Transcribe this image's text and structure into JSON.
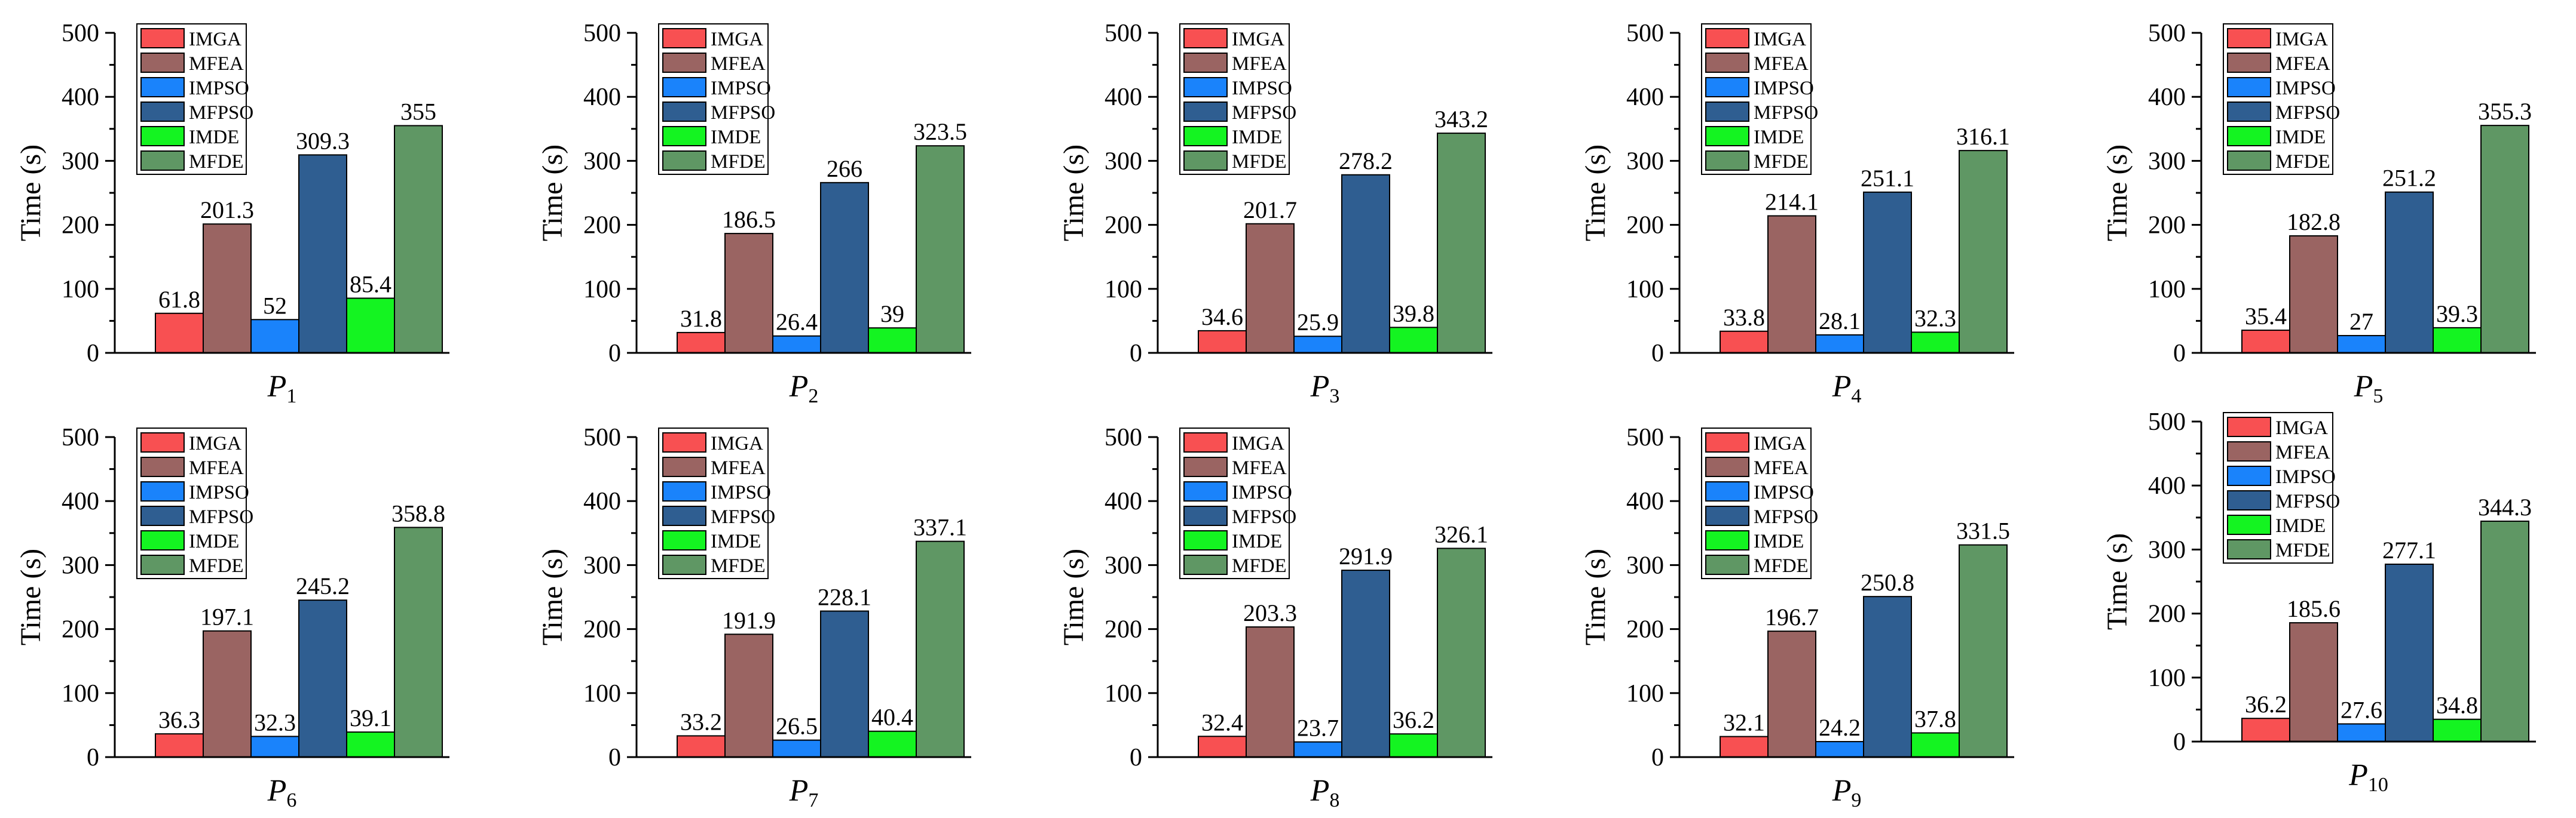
{
  "colors": {
    "IMGA": "#f85052",
    "MFEA": "#9a6462",
    "IMPSO": "#1a83fb",
    "MFPSO": "#2f5e91",
    "IMDE": "#14f421",
    "MFDE": "#5f9764"
  },
  "chart_data": [
    {
      "type": "bar",
      "xlabel": "P",
      "xlabel_sub": "1",
      "ylabel": "Time (s)",
      "ylim": [
        0,
        500
      ],
      "yticks": [
        "0",
        "100",
        "200",
        "300",
        "400",
        "500"
      ],
      "legend": "top-left",
      "series": [
        {
          "name": "IMGA",
          "value": 61.8,
          "label": "61.8"
        },
        {
          "name": "MFEA",
          "value": 201.3,
          "label": "201.3"
        },
        {
          "name": "IMPSO",
          "value": 52,
          "label": "52"
        },
        {
          "name": "MFPSO",
          "value": 309.3,
          "label": "309.3"
        },
        {
          "name": "IMDE",
          "value": 85.4,
          "label": "85.4"
        },
        {
          "name": "MFDE",
          "value": 355,
          "label": "355"
        }
      ]
    },
    {
      "type": "bar",
      "xlabel": "P",
      "xlabel_sub": "2",
      "ylabel": "Time (s)",
      "ylim": [
        0,
        500
      ],
      "yticks": [
        "0",
        "100",
        "200",
        "300",
        "400",
        "500"
      ],
      "legend": "top-left",
      "series": [
        {
          "name": "IMGA",
          "value": 31.8,
          "label": "31.8"
        },
        {
          "name": "MFEA",
          "value": 186.5,
          "label": "186.5"
        },
        {
          "name": "IMPSO",
          "value": 26.4,
          "label": "26.4"
        },
        {
          "name": "MFPSO",
          "value": 266,
          "label": "266"
        },
        {
          "name": "IMDE",
          "value": 39,
          "label": "39"
        },
        {
          "name": "MFDE",
          "value": 323.5,
          "label": "323.5"
        }
      ]
    },
    {
      "type": "bar",
      "xlabel": "P",
      "xlabel_sub": "3",
      "ylabel": "Time (s)",
      "ylim": [
        0,
        500
      ],
      "yticks": [
        "0",
        "100",
        "200",
        "300",
        "400",
        "500"
      ],
      "legend": "top-left",
      "series": [
        {
          "name": "IMGA",
          "value": 34.6,
          "label": "34.6"
        },
        {
          "name": "MFEA",
          "value": 201.7,
          "label": "201.7"
        },
        {
          "name": "IMPSO",
          "value": 25.9,
          "label": "25.9"
        },
        {
          "name": "MFPSO",
          "value": 278.2,
          "label": "278.2"
        },
        {
          "name": "IMDE",
          "value": 39.8,
          "label": "39.8"
        },
        {
          "name": "MFDE",
          "value": 343.2,
          "label": "343.2"
        }
      ]
    },
    {
      "type": "bar",
      "xlabel": "P",
      "xlabel_sub": "4",
      "ylabel": "Time (s)",
      "ylim": [
        0,
        500
      ],
      "yticks": [
        "0",
        "100",
        "200",
        "300",
        "400",
        "500"
      ],
      "legend": "top-left",
      "series": [
        {
          "name": "IMGA",
          "value": 33.8,
          "label": "33.8"
        },
        {
          "name": "MFEA",
          "value": 214.1,
          "label": "214.1"
        },
        {
          "name": "IMPSO",
          "value": 28.1,
          "label": "28.1"
        },
        {
          "name": "MFPSO",
          "value": 251.1,
          "label": "251.1"
        },
        {
          "name": "IMDE",
          "value": 32.3,
          "label": "32.3"
        },
        {
          "name": "MFDE",
          "value": 316.1,
          "label": "316.1"
        }
      ]
    },
    {
      "type": "bar",
      "xlabel": "P",
      "xlabel_sub": "5",
      "ylabel": "Time (s)",
      "ylim": [
        0,
        500
      ],
      "yticks": [
        "0",
        "100",
        "200",
        "300",
        "400",
        "500"
      ],
      "legend": "top-left",
      "series": [
        {
          "name": "IMGA",
          "value": 35.4,
          "label": "35.4"
        },
        {
          "name": "MFEA",
          "value": 182.8,
          "label": "182.8"
        },
        {
          "name": "IMPSO",
          "value": 27,
          "label": "27"
        },
        {
          "name": "MFPSO",
          "value": 251.2,
          "label": "251.2"
        },
        {
          "name": "IMDE",
          "value": 39.3,
          "label": "39.3"
        },
        {
          "name": "MFDE",
          "value": 355.3,
          "label": "355.3"
        }
      ]
    },
    {
      "type": "bar",
      "xlabel": "P",
      "xlabel_sub": "6",
      "ylabel": "Time (s)",
      "ylim": [
        0,
        500
      ],
      "yticks": [
        "0",
        "100",
        "200",
        "300",
        "400",
        "500"
      ],
      "legend": "top-left",
      "series": [
        {
          "name": "IMGA",
          "value": 36.3,
          "label": "36.3"
        },
        {
          "name": "MFEA",
          "value": 197.1,
          "label": "197.1"
        },
        {
          "name": "IMPSO",
          "value": 32.3,
          "label": "32.3"
        },
        {
          "name": "MFPSO",
          "value": 245.2,
          "label": "245.2"
        },
        {
          "name": "IMDE",
          "value": 39.1,
          "label": "39.1"
        },
        {
          "name": "MFDE",
          "value": 358.8,
          "label": "358.8"
        }
      ]
    },
    {
      "type": "bar",
      "xlabel": "P",
      "xlabel_sub": "7",
      "ylabel": "Time (s)",
      "ylim": [
        0,
        500
      ],
      "yticks": [
        "0",
        "100",
        "200",
        "300",
        "400",
        "500"
      ],
      "legend": "top-left",
      "series": [
        {
          "name": "IMGA",
          "value": 33.2,
          "label": "33.2"
        },
        {
          "name": "MFEA",
          "value": 191.9,
          "label": "191.9"
        },
        {
          "name": "IMPSO",
          "value": 26.5,
          "label": "26.5"
        },
        {
          "name": "MFPSO",
          "value": 228.1,
          "label": "228.1"
        },
        {
          "name": "IMDE",
          "value": 40.4,
          "label": "40.4"
        },
        {
          "name": "MFDE",
          "value": 337.1,
          "label": "337.1"
        }
      ]
    },
    {
      "type": "bar",
      "xlabel": "P",
      "xlabel_sub": "8",
      "ylabel": "Time (s)",
      "ylim": [
        0,
        500
      ],
      "yticks": [
        "0",
        "100",
        "200",
        "300",
        "400",
        "500"
      ],
      "legend": "top-left",
      "series": [
        {
          "name": "IMGA",
          "value": 32.4,
          "label": "32.4"
        },
        {
          "name": "MFEA",
          "value": 203.3,
          "label": "203.3"
        },
        {
          "name": "IMPSO",
          "value": 23.7,
          "label": "23.7"
        },
        {
          "name": "MFPSO",
          "value": 291.9,
          "label": "291.9"
        },
        {
          "name": "IMDE",
          "value": 36.2,
          "label": "36.2"
        },
        {
          "name": "MFDE",
          "value": 326.1,
          "label": "326.1"
        }
      ]
    },
    {
      "type": "bar",
      "xlabel": "P",
      "xlabel_sub": "9",
      "ylabel": "Time (s)",
      "ylim": [
        0,
        500
      ],
      "yticks": [
        "0",
        "100",
        "200",
        "300",
        "400",
        "500"
      ],
      "legend": "top-left",
      "series": [
        {
          "name": "IMGA",
          "value": 32.1,
          "label": "32.1"
        },
        {
          "name": "MFEA",
          "value": 196.7,
          "label": "196.7"
        },
        {
          "name": "IMPSO",
          "value": 24.2,
          "label": "24.2"
        },
        {
          "name": "MFPSO",
          "value": 250.8,
          "label": "250.8"
        },
        {
          "name": "IMDE",
          "value": 37.8,
          "label": "37.8"
        },
        {
          "name": "MFDE",
          "value": 331.5,
          "label": "331.5"
        }
      ]
    },
    {
      "type": "bar",
      "xlabel": "P",
      "xlabel_sub": "10",
      "ylabel": "Time (s)",
      "ylim": [
        0,
        500
      ],
      "yticks": [
        "0",
        "100",
        "200",
        "300",
        "400",
        "500"
      ],
      "legend": "top-left",
      "series": [
        {
          "name": "IMGA",
          "value": 36.2,
          "label": "36.2"
        },
        {
          "name": "MFEA",
          "value": 185.6,
          "label": "185.6"
        },
        {
          "name": "IMPSO",
          "value": 27.6,
          "label": "27.6"
        },
        {
          "name": "MFPSO",
          "value": 277.1,
          "label": "277.1"
        },
        {
          "name": "IMDE",
          "value": 34.8,
          "label": "34.8"
        },
        {
          "name": "MFDE",
          "value": 344.3,
          "label": "344.3"
        }
      ]
    }
  ]
}
